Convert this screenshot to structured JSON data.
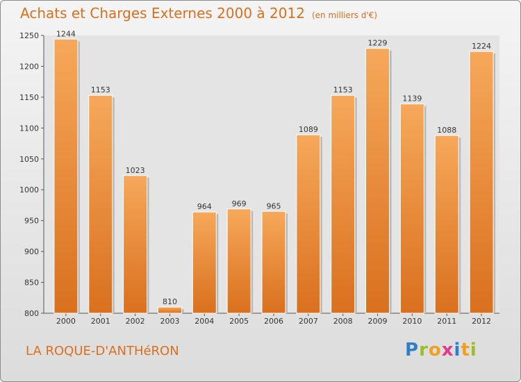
{
  "header": {
    "title": "Achats et Charges Externes 2000 à 2012",
    "subtitle": "(en milliers d'€)"
  },
  "footer": {
    "commune": "LA ROQUE-D'ANTHéRON",
    "logo_letters": [
      "P",
      "r",
      "o",
      "x",
      "i",
      "t",
      "i"
    ],
    "logo_colors": [
      "#2f7fc4",
      "#9bbf24",
      "#f0a020",
      "#e03a8a",
      "#2f7fc4",
      "#f0a020",
      "#9bbf24"
    ]
  },
  "colors": {
    "bar_top": "#f6a85a",
    "bar_bottom": "#d9701e",
    "accent": "#d9701e"
  },
  "chart_data": {
    "type": "bar",
    "categories": [
      "2000",
      "2001",
      "2002",
      "2003",
      "2004",
      "2005",
      "2006",
      "2007",
      "2008",
      "2009",
      "2010",
      "2011",
      "2012"
    ],
    "values": [
      1244,
      1153,
      1023,
      810,
      964,
      969,
      965,
      1089,
      1153,
      1229,
      1139,
      1088,
      1224
    ],
    "ylim": [
      800,
      1250
    ],
    "yticks": [
      800,
      850,
      900,
      950,
      1000,
      1050,
      1100,
      1150,
      1200,
      1250
    ],
    "grid": false
  }
}
